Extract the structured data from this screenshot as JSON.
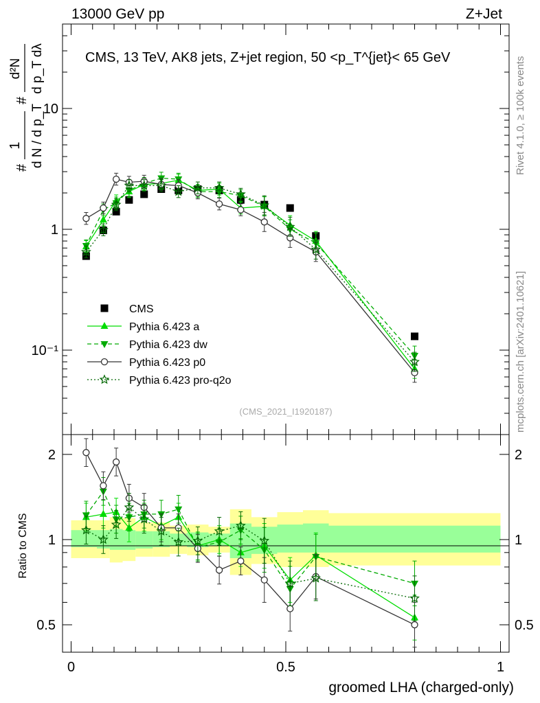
{
  "header": {
    "left": "13000 GeV pp",
    "right": "Z+Jet"
  },
  "side_labels": {
    "rivet": "Rivet 4.1.0, ≥ 100k events",
    "mcplots": "mcplots.cern.ch [arXiv:2401.10621]"
  },
  "source_label": "(CMS_2021_I1920187)",
  "main_ylabel": {
    "num1": "#",
    "frac1": "1",
    "den1": "d N / d p_T",
    "num2": "#",
    "d2": "d²N",
    "den2": "d p_T dλ"
  },
  "colors": {
    "data": "#000000",
    "pythia_a": "#00dd00",
    "pythia_dw": "#00aa00",
    "pythia_p0": "#333333",
    "pythia_q2o": "#006600",
    "band_yellow": "#ffff99",
    "band_green": "#99ff99"
  },
  "chart_data": [
    {
      "type": "scatter",
      "title": "CMS, 13 TeV, AK8 jets, Z+jet region, 50 <p_T^{jet}< 65 GeV",
      "xlabel": "groomed LHA (charged-only)",
      "ylabel": "1/N dN/dp_T d²N/dp_T dλ",
      "yscale": "log",
      "ylim": [
        0.02,
        50
      ],
      "xlim": [
        -0.02,
        1.02
      ],
      "ytick_labels": [
        "10⁻¹",
        "1",
        "10"
      ],
      "ytick_values": [
        0.1,
        1,
        10
      ],
      "x": [
        0.035,
        0.075,
        0.105,
        0.135,
        0.17,
        0.21,
        0.25,
        0.295,
        0.345,
        0.395,
        0.45,
        0.51,
        0.57,
        0.8
      ],
      "series": [
        {
          "name": "CMS",
          "style": "data",
          "values": [
            0.6,
            0.98,
            1.4,
            1.75,
            1.95,
            2.15,
            2.1,
            2.15,
            2.1,
            1.75,
            1.6,
            1.5,
            0.88,
            0.13
          ]
        },
        {
          "name": "Pythia 6.423 a",
          "style": "a",
          "values": [
            0.72,
            1.2,
            1.72,
            2.05,
            2.35,
            2.4,
            2.55,
            2.1,
            2.15,
            1.5,
            1.55,
            1.08,
            0.8,
            0.07
          ]
        },
        {
          "name": "Pythia 6.423 dw",
          "style": "dw",
          "values": [
            0.73,
            1.45,
            1.65,
            2.1,
            2.4,
            2.65,
            2.6,
            2.05,
            2.05,
            1.9,
            1.55,
            1.0,
            0.77,
            0.09
          ]
        },
        {
          "name": "Pythia 6.423 p0",
          "style": "p0",
          "values": [
            1.23,
            1.5,
            2.6,
            2.45,
            2.5,
            2.35,
            2.3,
            2.0,
            1.62,
            1.45,
            1.15,
            0.85,
            0.65,
            0.065
          ]
        },
        {
          "name": "Pythia 6.423 pro-q2o",
          "style": "q2o",
          "values": [
            0.65,
            0.99,
            1.6,
            2.3,
            2.3,
            2.3,
            2.05,
            2.2,
            2.2,
            1.95,
            1.58,
            1.05,
            0.68,
            0.08
          ]
        }
      ],
      "legend": [
        "CMS",
        "Pythia 6.423 a",
        "Pythia 6.423 dw",
        "Pythia 6.423 p0",
        "Pythia 6.423 pro-q2o"
      ]
    },
    {
      "type": "scatter",
      "title": "",
      "xlabel": "groomed LHA (charged-only)",
      "ylabel": "Ratio to CMS",
      "yscale": "log",
      "ylim": [
        0.4,
        2.35
      ],
      "xlim": [
        -0.02,
        1.02
      ],
      "xtick_labels": [
        "0",
        "0.5",
        "1"
      ],
      "xtick_values": [
        0,
        0.5,
        1
      ],
      "ytick_labels": [
        "0.5",
        "1",
        "2"
      ],
      "ytick_values": [
        0.5,
        1,
        2
      ],
      "bin_edges": [
        0.0,
        0.06,
        0.09,
        0.12,
        0.15,
        0.19,
        0.23,
        0.27,
        0.32,
        0.37,
        0.42,
        0.48,
        0.54,
        0.6,
        1.0
      ],
      "band_yellow": [
        [
          0.86,
          1.17
        ],
        [
          0.86,
          1.17
        ],
        [
          0.83,
          1.2
        ],
        [
          0.84,
          1.19
        ],
        [
          0.87,
          1.15
        ],
        [
          0.87,
          1.15
        ],
        [
          0.89,
          1.12
        ],
        [
          0.88,
          1.13
        ],
        [
          0.9,
          1.11
        ],
        [
          0.75,
          1.28
        ],
        [
          0.82,
          1.2
        ],
        [
          0.8,
          1.25
        ],
        [
          0.8,
          1.27
        ],
        [
          0.81,
          1.24
        ]
      ],
      "band_green": [
        [
          0.94,
          1.08
        ],
        [
          0.93,
          1.08
        ],
        [
          0.92,
          1.09
        ],
        [
          0.92,
          1.08
        ],
        [
          0.93,
          1.07
        ],
        [
          0.94,
          1.07
        ],
        [
          0.95,
          1.05
        ],
        [
          0.94,
          1.06
        ],
        [
          0.95,
          1.05
        ],
        [
          0.86,
          1.14
        ],
        [
          0.89,
          1.11
        ],
        [
          0.9,
          1.13
        ],
        [
          0.9,
          1.14
        ],
        [
          0.9,
          1.12
        ]
      ],
      "x": [
        0.035,
        0.075,
        0.105,
        0.135,
        0.17,
        0.21,
        0.25,
        0.295,
        0.345,
        0.395,
        0.45,
        0.51,
        0.57,
        0.8
      ],
      "series": [
        {
          "name": "Pythia 6.423 a",
          "style": "a",
          "values": [
            1.2,
            1.23,
            1.25,
            1.1,
            1.2,
            1.12,
            1.2,
            0.95,
            1.0,
            0.9,
            0.95,
            0.72,
            0.88,
            0.53
          ]
        },
        {
          "name": "Pythia 6.423 dw",
          "style": "dw",
          "values": [
            1.22,
            1.48,
            1.18,
            1.2,
            1.23,
            1.23,
            1.28,
            0.94,
            0.98,
            1.08,
            0.92,
            0.67,
            0.87,
            0.7
          ]
        },
        {
          "name": "Pythia 6.423 p0",
          "style": "p0",
          "values": [
            2.03,
            1.55,
            1.88,
            1.4,
            1.3,
            1.1,
            1.1,
            0.93,
            0.78,
            0.84,
            0.72,
            0.57,
            0.74,
            0.5
          ]
        },
        {
          "name": "Pythia 6.423 pro-q2o",
          "style": "q2o",
          "values": [
            1.08,
            1.0,
            1.13,
            1.3,
            1.18,
            1.07,
            0.98,
            0.99,
            1.07,
            1.12,
            0.99,
            0.7,
            0.73,
            0.62
          ]
        }
      ]
    }
  ]
}
